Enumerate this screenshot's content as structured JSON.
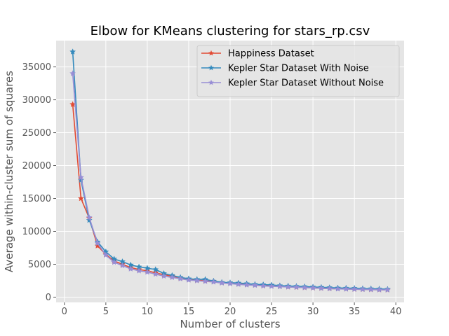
{
  "chart_data": {
    "type": "line",
    "title": "Elbow for KMeans clustering for stars_rp.csv",
    "xlabel": "Number of clusters",
    "ylabel": "Average within-cluster sum of squares",
    "xlim": [
      -1,
      41
    ],
    "ylim": [
      -800,
      39000
    ],
    "xticks": [
      0,
      5,
      10,
      15,
      20,
      25,
      30,
      35,
      40
    ],
    "yticks": [
      0,
      5000,
      10000,
      15000,
      20000,
      25000,
      30000,
      35000
    ],
    "grid": true,
    "legend_position": "top-right",
    "x": [
      1,
      2,
      3,
      4,
      5,
      6,
      7,
      8,
      9,
      10,
      11,
      12,
      13,
      14,
      15,
      16,
      17,
      18,
      19,
      20,
      21,
      22,
      23,
      24,
      25,
      26,
      27,
      28,
      29,
      30,
      31,
      32,
      33,
      34,
      35,
      36,
      37,
      38,
      39
    ],
    "series": [
      {
        "name": "Happiness Dataset",
        "color": "#E24A33",
        "marker": "star",
        "values": [
          29300,
          15000,
          12000,
          7800,
          6500,
          5500,
          5000,
          4500,
          4200,
          4000,
          3700,
          3400,
          3200,
          2900,
          2700,
          2600,
          2500,
          2400,
          2200,
          2100,
          2000,
          1950,
          1850,
          1750,
          1700,
          1650,
          1550,
          1500,
          1450,
          1400,
          1350,
          1300,
          1280,
          1250,
          1200,
          1180,
          1150,
          1120,
          1100
        ]
      },
      {
        "name": "Kepler Star Dataset With Noise",
        "color": "#348ABD",
        "marker": "star",
        "values": [
          37300,
          17800,
          11700,
          8400,
          6900,
          5800,
          5400,
          4900,
          4600,
          4400,
          4200,
          3600,
          3300,
          3000,
          2800,
          2700,
          2700,
          2450,
          2250,
          2200,
          2150,
          2050,
          1950,
          1900,
          1850,
          1750,
          1700,
          1650,
          1600,
          1550,
          1500,
          1450,
          1400,
          1380,
          1350,
          1300,
          1280,
          1250,
          1200
        ]
      },
      {
        "name": "Kepler Star Dataset Without Noise",
        "color": "#988ED5",
        "marker": "star",
        "values": [
          34000,
          18200,
          12100,
          8200,
          6400,
          5300,
          4800,
          4300,
          4000,
          3800,
          3500,
          3200,
          3000,
          2800,
          2600,
          2500,
          2400,
          2300,
          2150,
          2050,
          1950,
          1850,
          1800,
          1700,
          1650,
          1600,
          1550,
          1500,
          1450,
          1400,
          1350,
          1300,
          1250,
          1230,
          1200,
          1170,
          1150,
          1120,
          1100
        ]
      }
    ]
  }
}
